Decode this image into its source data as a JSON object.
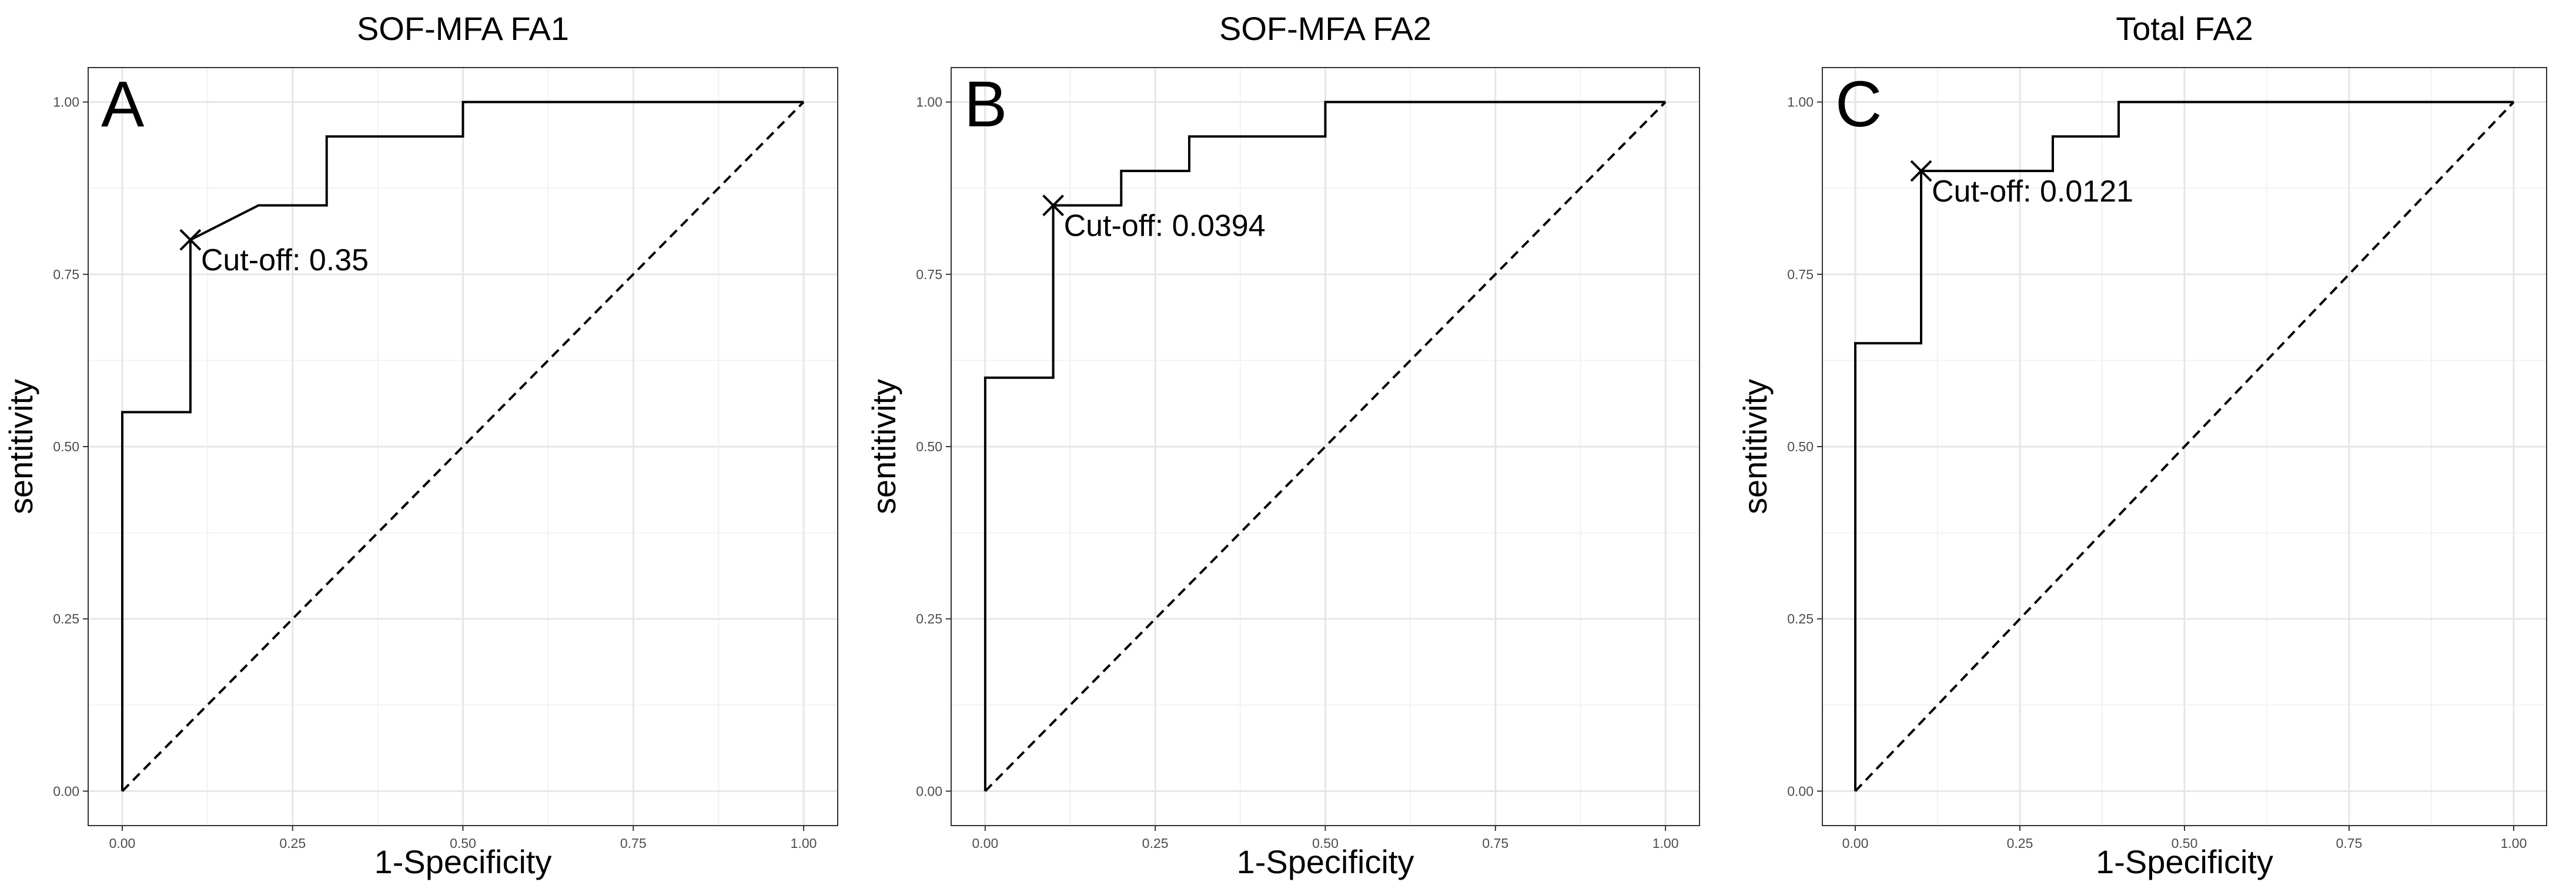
{
  "chart_data": [
    {
      "type": "line",
      "panel_label": "A",
      "title": "SOF-MFA FA1",
      "xlabel": "1-Specificity",
      "ylabel": "sentitivity",
      "xlim": [
        0,
        1
      ],
      "ylim": [
        0,
        1
      ],
      "xticks": [
        "0.00",
        "0.25",
        "0.50",
        "0.75",
        "1.00"
      ],
      "yticks": [
        "0.00",
        "0.25",
        "0.50",
        "0.75",
        "1.00"
      ],
      "grid": true,
      "series": [
        {
          "name": "ROC",
          "style": "solid",
          "x": [
            0,
            0,
            0.1,
            0.1,
            0.2,
            0.3,
            0.3,
            0.5,
            0.5,
            1.0
          ],
          "y": [
            0,
            0.55,
            0.55,
            0.8,
            0.85,
            0.85,
            0.95,
            0.95,
            1.0,
            1.0
          ]
        },
        {
          "name": "chance",
          "style": "dashed",
          "x": [
            0,
            1
          ],
          "y": [
            0,
            1
          ]
        }
      ],
      "cutoff": {
        "x": 0.1,
        "y": 0.8,
        "label": "Cut-off: 0.35"
      }
    },
    {
      "type": "line",
      "panel_label": "B",
      "title": "SOF-MFA FA2",
      "xlabel": "1-Specificity",
      "ylabel": "sentitivity",
      "xlim": [
        0,
        1
      ],
      "ylim": [
        0,
        1
      ],
      "xticks": [
        "0.00",
        "0.25",
        "0.50",
        "0.75",
        "1.00"
      ],
      "yticks": [
        "0.00",
        "0.25",
        "0.50",
        "0.75",
        "1.00"
      ],
      "grid": true,
      "series": [
        {
          "name": "ROC",
          "style": "solid",
          "x": [
            0,
            0,
            0.1,
            0.1,
            0.2,
            0.2,
            0.3,
            0.3,
            0.5,
            0.5,
            1.0
          ],
          "y": [
            0,
            0.6,
            0.6,
            0.85,
            0.85,
            0.9,
            0.9,
            0.95,
            0.95,
            1.0,
            1.0
          ]
        },
        {
          "name": "chance",
          "style": "dashed",
          "x": [
            0,
            1
          ],
          "y": [
            0,
            1
          ]
        }
      ],
      "cutoff": {
        "x": 0.1,
        "y": 0.85,
        "label": "Cut-off: 0.0394"
      }
    },
    {
      "type": "line",
      "panel_label": "C",
      "title": "Total FA2",
      "xlabel": "1-Specificity",
      "ylabel": "sentitivity",
      "xlim": [
        0,
        1
      ],
      "ylim": [
        0,
        1
      ],
      "xticks": [
        "0.00",
        "0.25",
        "0.50",
        "0.75",
        "1.00"
      ],
      "yticks": [
        "0.00",
        "0.25",
        "0.50",
        "0.75",
        "1.00"
      ],
      "grid": true,
      "series": [
        {
          "name": "ROC",
          "style": "solid",
          "x": [
            0,
            0,
            0.1,
            0.1,
            0.3,
            0.3,
            0.4,
            0.4,
            1.0
          ],
          "y": [
            0,
            0.65,
            0.65,
            0.9,
            0.9,
            0.95,
            0.95,
            1.0,
            1.0
          ]
        },
        {
          "name": "chance",
          "style": "dashed",
          "x": [
            0,
            1
          ],
          "y": [
            0,
            1
          ]
        }
      ],
      "cutoff": {
        "x": 0.1,
        "y": 0.9,
        "label": "Cut-off: 0.0121"
      }
    }
  ]
}
